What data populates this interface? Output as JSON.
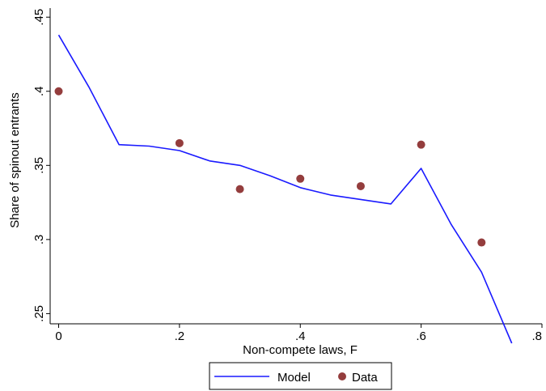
{
  "chart_data": {
    "type": "line",
    "title": "",
    "xlabel": "Non-compete laws, F",
    "ylabel": "Share of spinout entrants",
    "xlim": [
      0,
      0.8
    ],
    "ylim": [
      0.225,
      0.45
    ],
    "x_ticks": [
      0,
      0.2,
      0.4,
      0.6,
      0.8
    ],
    "x_tick_labels": [
      "0",
      ".2",
      ".4",
      ".6",
      ".8"
    ],
    "y_ticks": [
      0.25,
      0.3,
      0.35,
      0.4,
      0.45
    ],
    "y_tick_labels": [
      ".25",
      ".3",
      ".35",
      ".4",
      ".45"
    ],
    "grid": false,
    "legend_position": "bottom",
    "series": [
      {
        "name": "Model",
        "kind": "line",
        "color": "#1a1aff",
        "x": [
          0,
          0.05,
          0.1,
          0.15,
          0.2,
          0.25,
          0.3,
          0.35,
          0.4,
          0.45,
          0.5,
          0.55,
          0.6,
          0.65,
          0.7,
          0.75
        ],
        "y": [
          0.438,
          0.403,
          0.364,
          0.363,
          0.36,
          0.353,
          0.35,
          0.343,
          0.335,
          0.33,
          0.327,
          0.324,
          0.348,
          0.31,
          0.278,
          0.23
        ]
      },
      {
        "name": "Data",
        "kind": "scatter",
        "color": "#943d3d",
        "x": [
          0,
          0.2,
          0.3,
          0.4,
          0.5,
          0.6,
          0.7
        ],
        "y": [
          0.4,
          0.365,
          0.334,
          0.341,
          0.336,
          0.364,
          0.298
        ]
      }
    ]
  }
}
